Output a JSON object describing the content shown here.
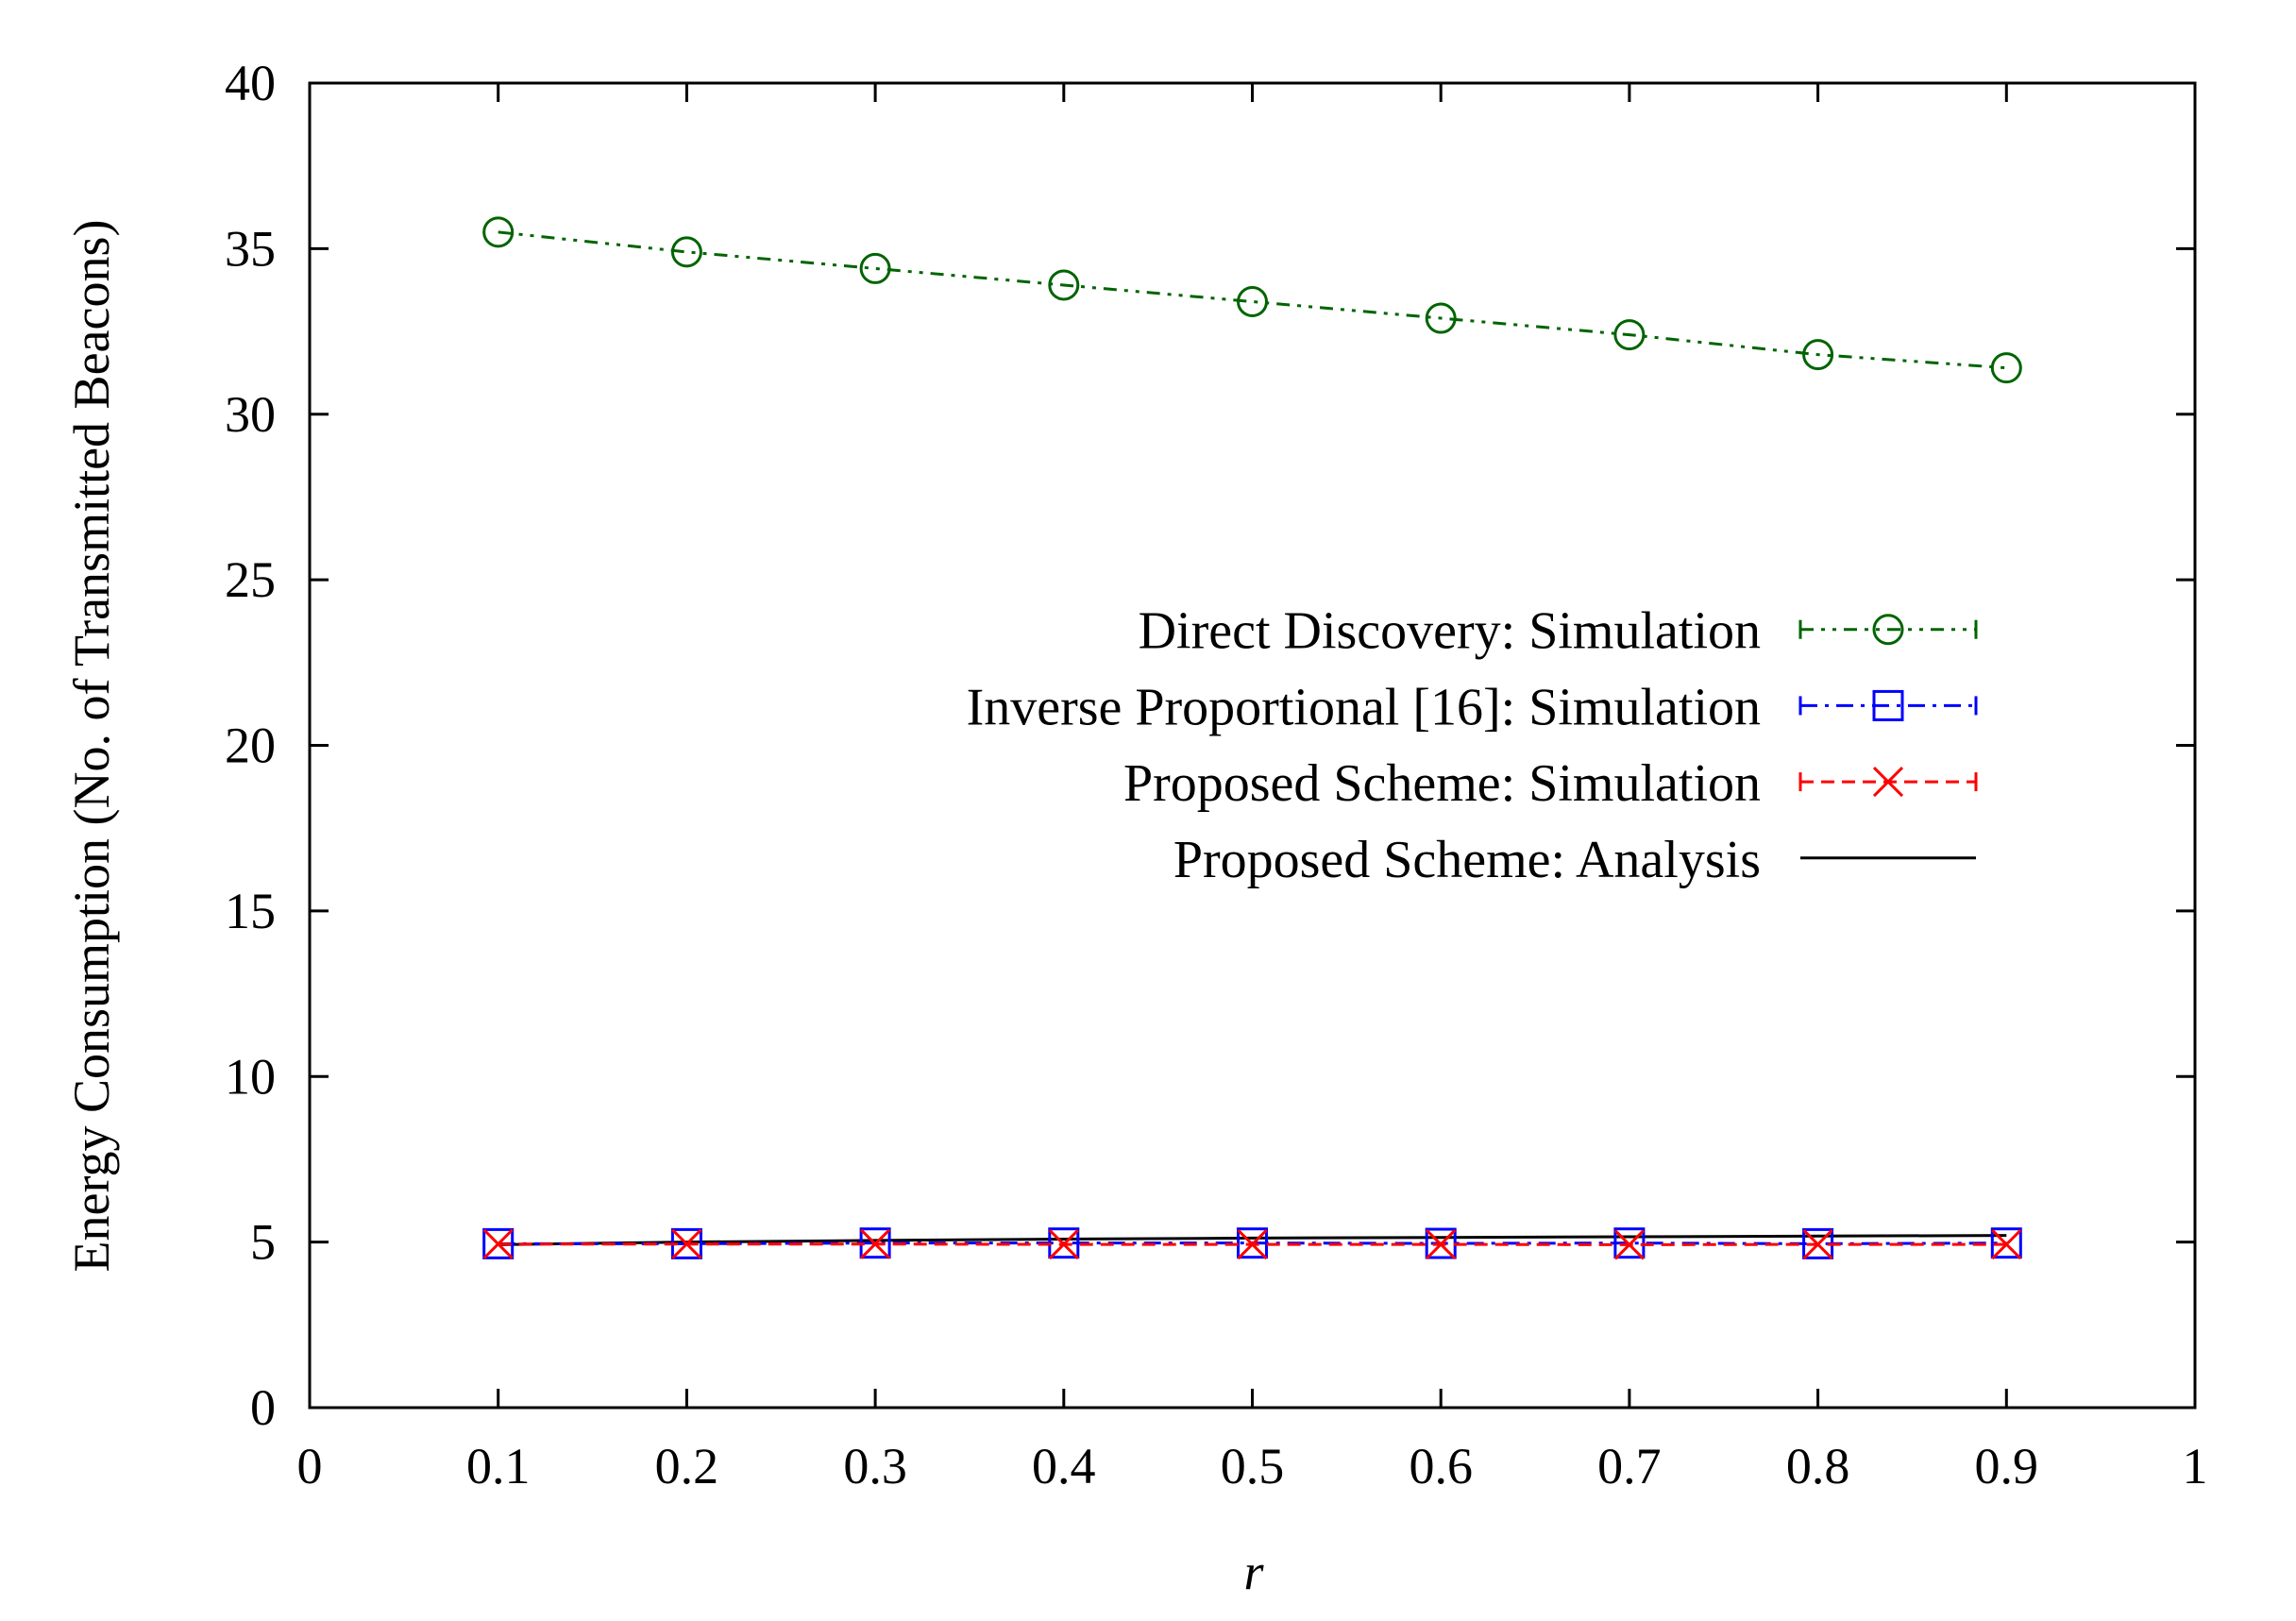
{
  "chart_data": {
    "type": "line",
    "title": "",
    "xlabel": "r",
    "ylabel": "Energy Consumption (No. of Transmitted Beacons)",
    "xlim": [
      0,
      1
    ],
    "ylim": [
      0,
      40
    ],
    "xticks": [
      "0",
      "0.1",
      "0.2",
      "0.3",
      "0.4",
      "0.5",
      "0.6",
      "0.7",
      "0.8",
      "0.9",
      "1"
    ],
    "yticks": [
      "0",
      "5",
      "10",
      "15",
      "20",
      "25",
      "30",
      "35",
      "40"
    ],
    "x": [
      0.1,
      0.2,
      0.3,
      0.4,
      0.5,
      0.6,
      0.7,
      0.8,
      0.9
    ],
    "grid": false,
    "legend_position": "center-right",
    "series": [
      {
        "name": "Direct Discovery: Simulation",
        "color": "#006400",
        "marker": "circle",
        "dash": "dash-dot-dot",
        "values": [
          35.5,
          34.9,
          34.4,
          33.9,
          33.4,
          32.9,
          32.4,
          31.8,
          31.4
        ]
      },
      {
        "name": "Inverse Proportional [16]: Simulation",
        "color": "#0000ff",
        "marker": "square",
        "dash": "dash-dot",
        "values": [
          4.95,
          4.95,
          4.97,
          4.97,
          4.97,
          4.96,
          4.97,
          4.95,
          4.97
        ]
      },
      {
        "name": "Proposed Scheme: Simulation",
        "color": "#ff0000",
        "marker": "cross",
        "dash": "dashed",
        "values": [
          4.94,
          4.94,
          4.94,
          4.93,
          4.93,
          4.93,
          4.92,
          4.93,
          4.93
        ]
      },
      {
        "name": "Proposed Scheme: Analysis",
        "color": "#000000",
        "marker": "none",
        "dash": "solid",
        "values": [
          4.92,
          5.0,
          5.05,
          5.09,
          5.12,
          5.14,
          5.16,
          5.18,
          5.2
        ]
      }
    ]
  }
}
